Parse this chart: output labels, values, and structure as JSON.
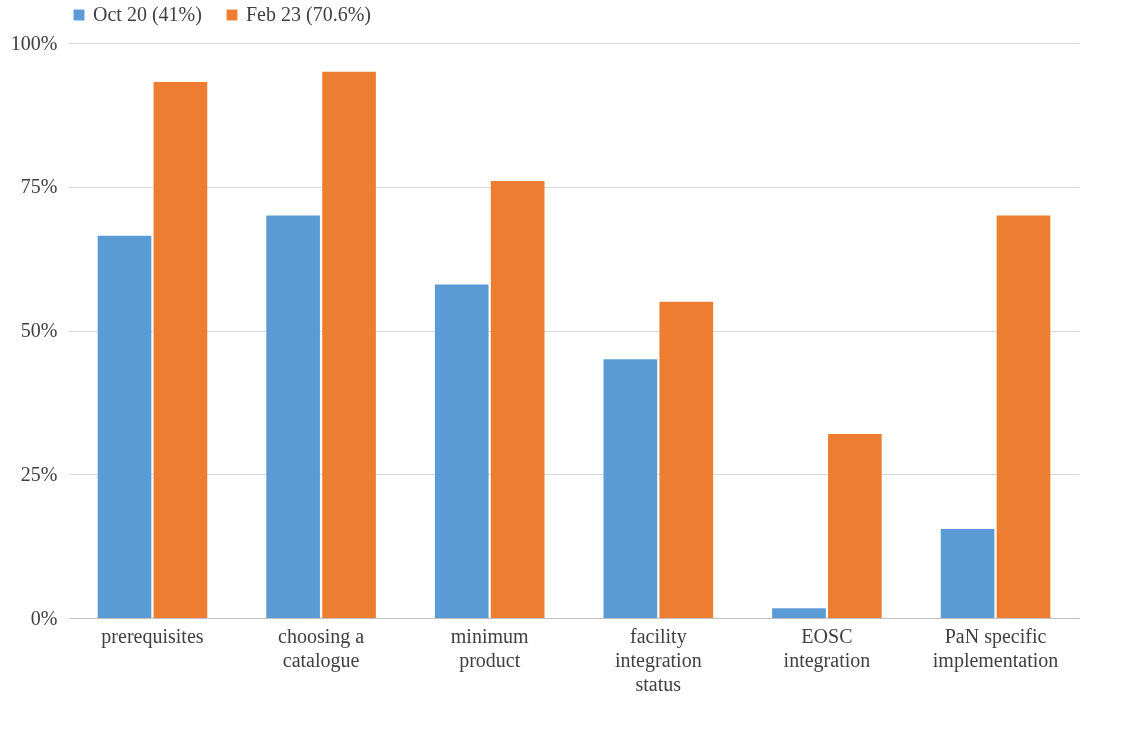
{
  "chart_data": {
    "type": "bar",
    "categories": [
      "prerequisites",
      "choosing a catalogue",
      "minimum product",
      "facility integration status",
      "EOSC integration",
      "PaN specific implementation"
    ],
    "series": [
      {
        "name": "Oct 20 (41%)",
        "color": "#5b9bd5",
        "values": [
          66.5,
          70,
          58,
          45,
          1.7,
          15.5
        ]
      },
      {
        "name": "Feb 23 (70.6%)",
        "color": "#ed7d31",
        "values": [
          93.2,
          95,
          76,
          55,
          32,
          70
        ]
      }
    ],
    "ylim": [
      0,
      100
    ],
    "yticks": [
      {
        "value": 0,
        "label": "0%"
      },
      {
        "value": 25,
        "label": "25%"
      },
      {
        "value": 50,
        "label": "50%"
      },
      {
        "value": 75,
        "label": "75%"
      },
      {
        "value": 100,
        "label": "100%"
      }
    ],
    "grid": "y",
    "legend": "top"
  }
}
